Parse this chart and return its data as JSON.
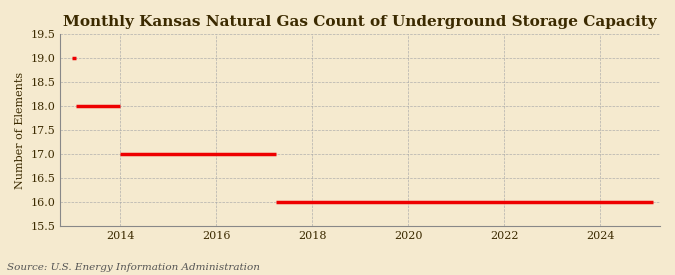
{
  "title": "Monthly Kansas Natural Gas Count of Underground Storage Capacity",
  "ylabel": "Number of Elements",
  "source": "Source: U.S. Energy Information Administration",
  "ylim": [
    15.5,
    19.5
  ],
  "yticks": [
    15.5,
    16.0,
    16.5,
    17.0,
    17.5,
    18.0,
    18.5,
    19.0,
    19.5
  ],
  "ytick_labels": [
    "15.5",
    "16.0",
    "16.5",
    "17.0",
    "17.5",
    "18.0",
    "18.5",
    "19.0",
    "19.5"
  ],
  "xticks": [
    2014,
    2016,
    2018,
    2020,
    2022,
    2024
  ],
  "background_color": "#F5EACF",
  "line_color": "#EE0000",
  "line_width": 2.5,
  "segments": [
    {
      "x_start": 2013.0,
      "x_end": 2013.08,
      "y": 19.0
    },
    {
      "x_start": 2013.08,
      "x_end": 2014.0,
      "y": 18.0
    },
    {
      "x_start": 2014.0,
      "x_end": 2017.25,
      "y": 17.0
    },
    {
      "x_start": 2017.25,
      "x_end": 2025.1,
      "y": 16.0
    }
  ],
  "xlim": [
    2012.75,
    2025.25
  ],
  "title_fontsize": 11,
  "title_color": "#3B2A00",
  "axis_fontsize": 8,
  "tick_fontsize": 8,
  "source_fontsize": 7.5
}
